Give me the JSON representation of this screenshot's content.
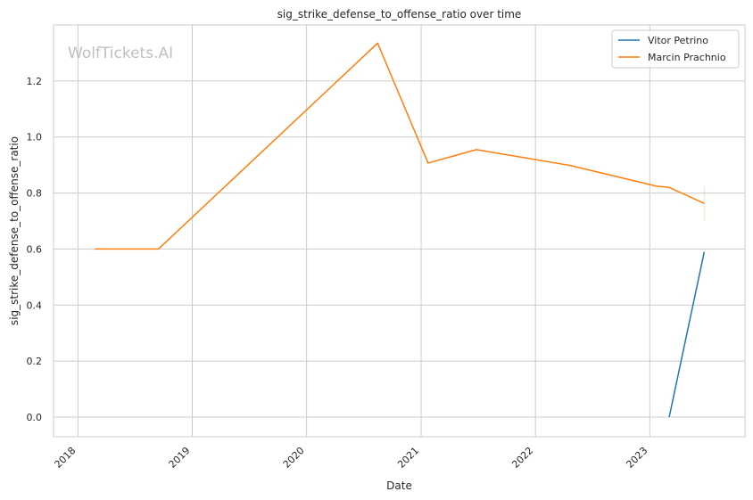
{
  "chart_data": {
    "type": "line",
    "title": "sig_strike_defense_to_offense_ratio over time",
    "xlabel": "Date",
    "ylabel": "sig_strike_defense_to_offense_ratio",
    "watermark": "WolfTickets.AI",
    "x_range": [
      "2017-10-15",
      "2023-11-01"
    ],
    "y_range": [
      -0.07,
      1.4
    ],
    "x_ticks": [
      {
        "date": "2018-01-01",
        "label": "2018"
      },
      {
        "date": "2019-01-01",
        "label": "2019"
      },
      {
        "date": "2020-01-01",
        "label": "2020"
      },
      {
        "date": "2021-01-01",
        "label": "2021"
      },
      {
        "date": "2022-01-01",
        "label": "2022"
      },
      {
        "date": "2023-01-01",
        "label": "2023"
      }
    ],
    "y_ticks": [
      {
        "value": 0.0,
        "label": "0.0"
      },
      {
        "value": 0.2,
        "label": "0.2"
      },
      {
        "value": 0.4,
        "label": "0.4"
      },
      {
        "value": 0.6,
        "label": "0.6"
      },
      {
        "value": 0.8,
        "label": "0.8"
      },
      {
        "value": 1.0,
        "label": "1.0"
      },
      {
        "value": 1.2,
        "label": "1.2"
      }
    ],
    "grid": true,
    "legend_position": "top-right",
    "series": [
      {
        "name": "Vitor Petrino",
        "color": "#1f77b4",
        "points": [
          {
            "x": "2023-03-04",
            "y": 0.0
          },
          {
            "x": "2023-06-24",
            "y": 0.59
          }
        ]
      },
      {
        "name": "Marcin Prachnio",
        "color": "#ff7f0e",
        "points": [
          {
            "x": "2018-02-24",
            "y": 0.6
          },
          {
            "x": "2018-09-15",
            "y": 0.6
          },
          {
            "x": "2020-08-15",
            "y": 1.335
          },
          {
            "x": "2021-01-23",
            "y": 0.907
          },
          {
            "x": "2021-06-26",
            "y": 0.955
          },
          {
            "x": "2022-04-23",
            "y": 0.898
          },
          {
            "x": "2023-01-21",
            "y": 0.825
          },
          {
            "x": "2023-03-04",
            "y": 0.82
          },
          {
            "x": "2023-06-24",
            "y": 0.763
          }
        ]
      }
    ]
  }
}
